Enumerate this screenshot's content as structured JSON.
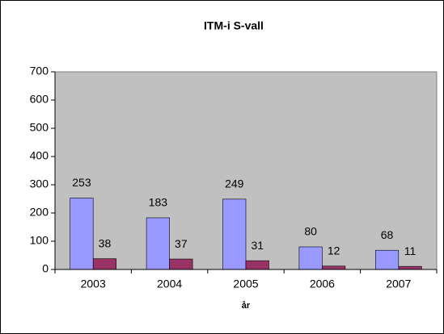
{
  "chart_data": {
    "type": "bar",
    "title": "ITM-i S-vall",
    "x_label": "år",
    "categories": [
      "2003",
      "2004",
      "2005",
      "2006",
      "2007"
    ],
    "series": [
      {
        "color": "#9999ff",
        "values": [
          253,
          183,
          249,
          80,
          68
        ]
      },
      {
        "color": "#993366",
        "values": [
          38,
          37,
          31,
          12,
          11
        ]
      }
    ],
    "ylim": [
      0,
      700
    ],
    "yticks": [
      0,
      100,
      200,
      300,
      400,
      500,
      600,
      700
    ],
    "plot_background": "#c0c0c0"
  }
}
